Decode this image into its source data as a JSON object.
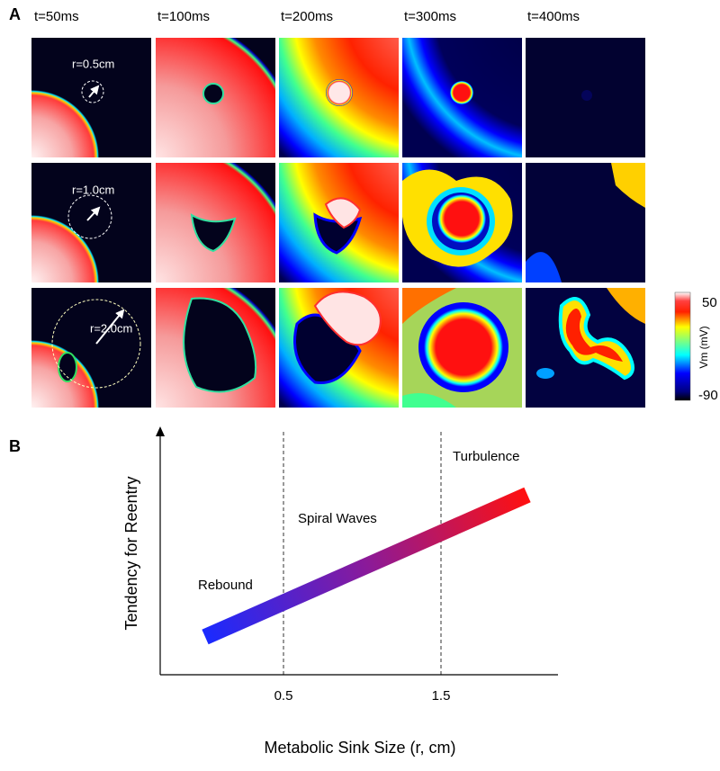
{
  "panel_a": {
    "label": "A",
    "times": [
      "t=50ms",
      "t=100ms",
      "t=200ms",
      "t=300ms",
      "t=400ms"
    ],
    "radii": [
      "r=0.5cm",
      "r=1.0cm",
      "r=2.0cm"
    ],
    "colorbar": {
      "max": "50",
      "min": "-90",
      "label": "Vm  (mV)"
    }
  },
  "panel_b": {
    "label": "B",
    "y_label": "Tendency for Reentry",
    "x_label": "Metabolic Sink Size (r, cm)",
    "x_ticks": [
      "0.5",
      "1.5"
    ],
    "regions": [
      "Rebound",
      "Spiral Waves",
      "Turbulence"
    ]
  }
}
